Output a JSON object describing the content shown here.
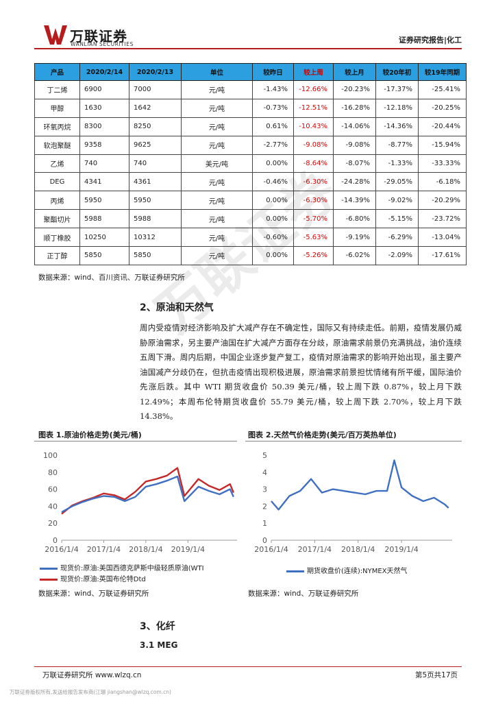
{
  "header": {
    "logo_cn": "万联证券",
    "logo_en": "WANLIAN SECURITIES",
    "right": "证券研究报告|化工",
    "brand_color": "#b71c1c"
  },
  "table": {
    "columns": [
      "产品",
      "2020/2/14",
      "2020/2/13",
      "单位",
      "较昨日",
      "较上周",
      "较上月",
      "较20年初",
      "较19年同期"
    ],
    "rows": [
      [
        "丁二烯",
        "6900",
        "7000",
        "元/吨",
        "-1.43%",
        "-12.66%",
        "-20.23%",
        "-17.37%",
        "-25.41%"
      ],
      [
        "甲醇",
        "1630",
        "1642",
        "元/吨",
        "-0.73%",
        "-12.51%",
        "-16.28%",
        "-12.18%",
        "-20.25%"
      ],
      [
        "环氧丙烷",
        "8300",
        "8250",
        "元/吨",
        "0.61%",
        "-10.43%",
        "-14.06%",
        "-14.36%",
        "-20.44%"
      ],
      [
        "软泡聚醚",
        "9358",
        "9625",
        "元/吨",
        "-2.77%",
        "-9.08%",
        "-9.08%",
        "-8.77%",
        "-15.94%"
      ],
      [
        "乙烯",
        "740",
        "740",
        "美元/吨",
        "0.00%",
        "-8.64%",
        "-8.07%",
        "-1.33%",
        "-33.33%"
      ],
      [
        "DEG",
        "4341",
        "4361",
        "元/吨",
        "-0.46%",
        "-6.30%",
        "-24.28%",
        "-29.05%",
        "-6.18%"
      ],
      [
        "丙烯",
        "5950",
        "5950",
        "元/吨",
        "0.00%",
        "-6.30%",
        "-14.39%",
        "-9.02%",
        "-20.29%"
      ],
      [
        "聚酯切片",
        "5988",
        "5988",
        "元/吨",
        "0.00%",
        "-5.70%",
        "-6.80%",
        "-5.15%",
        "-23.72%"
      ],
      [
        "顺丁橡胶",
        "10250",
        "10312",
        "元/吨",
        "-0.60%",
        "-5.63%",
        "-9.19%",
        "-6.29%",
        "-13.04%"
      ],
      [
        "正丁醇",
        "5850",
        "5850",
        "元/吨",
        "0.00%",
        "-5.26%",
        "-6.02%",
        "-2.09%",
        "-17.61%"
      ]
    ],
    "source": "数据来源：wind、百川资讯、万联证券研究所"
  },
  "section2": {
    "title": "2、原油和天然气",
    "para": "周内受疫情对经济影响及扩大减产存在不确定性，国际又有持续走低。前期，疫情发展仍威胁原油需求，另主要产油国在扩大减产方面存在分歧，原油需求前景仍充满挑战，油价连续五周下滑。周内后期，中国企业逐步复产复工，疫情对原油需求的影响开始出现，虽主要产油国减产分歧仍在，但抗击疫情出现积极进展，原油需求前景担忧情绪有所平缓，国际油价先涨后跌。其中 WTI 期货收盘价 50.39 美元/桶，较上周下跌 0.87%，较上月下跌 12.49%；本周布伦特期货收盘价 55.79 美元/桶，较上周下跌 2.70%，较上月下跌 14.38%。"
  },
  "fig1": {
    "title": "图表 1.原油价格走势(美元/桶)",
    "source": "数据来源：wind、万联证券研究所"
  },
  "fig2": {
    "title": "图表 2.天然气价格走势(美元/百万英热单位)",
    "source": "数据来源：wind、万联证券研究所"
  },
  "chart_data": [
    {
      "type": "line",
      "title": "图表 1.原油价格走势(美元/桶)",
      "ylim": [
        0,
        100
      ],
      "yticks": [
        "0",
        "20",
        "40",
        "60",
        "80",
        "100"
      ],
      "xticks": [
        "2016/1/4",
        "2017/1/4",
        "2018/1/4",
        "2019/1/4"
      ],
      "x": [
        "2016-01",
        "2016-04",
        "2016-07",
        "2016-10",
        "2017-01",
        "2017-04",
        "2017-07",
        "2017-10",
        "2018-01",
        "2018-04",
        "2018-07",
        "2018-10",
        "2018-12",
        "2019-04",
        "2019-07",
        "2019-10",
        "2020-01",
        "2020-02"
      ],
      "series": [
        {
          "name": "现货价:原油:美国西德克萨斯中级轻质原油(WTI",
          "color": "#3f6fc2",
          "values": [
            33,
            40,
            45,
            49,
            52,
            51,
            46,
            51,
            63,
            66,
            70,
            75,
            46,
            63,
            58,
            54,
            60,
            51
          ]
        },
        {
          "name": "现货价:原油:英国布伦特Dtd",
          "color": "#c62828",
          "values": [
            31,
            41,
            46,
            50,
            55,
            53,
            48,
            57,
            69,
            72,
            76,
            85,
            52,
            72,
            64,
            59,
            66,
            56
          ]
        }
      ]
    },
    {
      "type": "line",
      "title": "图表 2.天然气价格走势(美元/百万英热单位)",
      "ylim": [
        0,
        5
      ],
      "yticks": [
        "0",
        "1",
        "2",
        "3",
        "4",
        "5"
      ],
      "xticks": [
        "2016/1/4",
        "2017/1/4",
        "2018/1/4",
        "2019/1/4"
      ],
      "x": [
        "2016-01",
        "2016-03",
        "2016-06",
        "2016-09",
        "2016-12",
        "2017-03",
        "2017-06",
        "2017-09",
        "2017-12",
        "2018-03",
        "2018-06",
        "2018-09",
        "2018-11",
        "2019-01",
        "2019-04",
        "2019-07",
        "2019-10",
        "2020-01",
        "2020-02"
      ],
      "series": [
        {
          "name": "期货收盘价(连续):NYMEX天然气",
          "color": "#3f6fc2",
          "values": [
            2.3,
            1.8,
            2.6,
            2.9,
            3.6,
            2.8,
            3.0,
            2.9,
            2.8,
            2.7,
            2.9,
            2.9,
            4.7,
            3.1,
            2.6,
            2.3,
            2.5,
            2.1,
            1.9
          ]
        }
      ]
    }
  ],
  "section3": {
    "title": "3、化纤",
    "sub": "3.1 MEG"
  },
  "footer": {
    "left": "万联证券研究所  www.wlzq.cn",
    "right": "第5页共17页",
    "tiny": "万联证券版权所有,发送给报告发布商(江珊 jiangshan@wlzq.com.cn)"
  },
  "watermark": "万联证券"
}
